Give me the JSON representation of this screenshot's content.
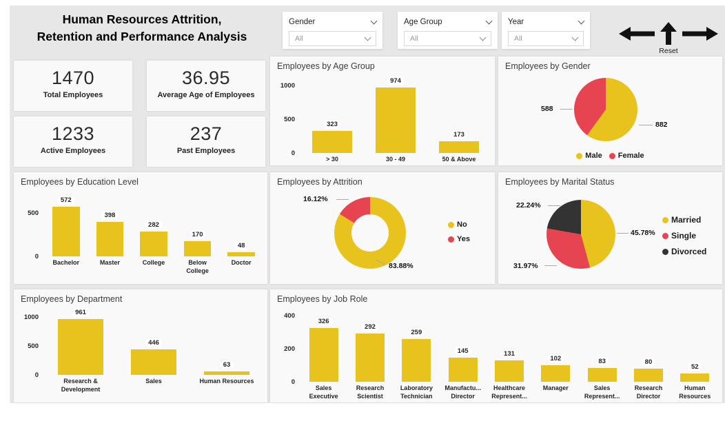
{
  "header": {
    "title_line1": "Human Resources Attrition,",
    "title_line2": "Retention and Performance Analysis",
    "slicers": [
      {
        "label": "Gender",
        "value": "All"
      },
      {
        "label": "Age Group",
        "value": "All"
      },
      {
        "label": "Year",
        "value": "All"
      }
    ],
    "reset_label": "Reset"
  },
  "kpis": [
    {
      "value": "1470",
      "label": "Total Employees"
    },
    {
      "value": "36.95",
      "label": "Average Age of Employees"
    },
    {
      "value": "1233",
      "label": "Active Employees"
    },
    {
      "value": "237",
      "label": "Past Employees"
    }
  ],
  "colors": {
    "bar_yellow": "#E9C31D",
    "accent_red": "#E64450",
    "accent_dark": "#333333",
    "page_background": "#E7E7E7",
    "card_background": "#F9F9F9"
  },
  "chart_data": [
    {
      "id": "age_group",
      "type": "bar",
      "title": "Employees by Age Group",
      "categories": [
        "> 30",
        "30 - 49",
        "50 & Above"
      ],
      "values": [
        323,
        974,
        173
      ],
      "ylim": [
        0,
        1000
      ],
      "yticks": [
        0,
        500,
        1000
      ],
      "bar_color": "#E9C31D",
      "grid": false
    },
    {
      "id": "gender",
      "type": "pie",
      "title": "Employees by Gender",
      "labels": [
        "Male",
        "Female"
      ],
      "values": [
        882,
        588
      ],
      "display_values": [
        "882",
        "588"
      ],
      "colors": [
        "#E9C31D",
        "#E64450"
      ],
      "legend_position": "bottom"
    },
    {
      "id": "education",
      "type": "bar",
      "title": "Employees by Education Level",
      "categories": [
        "Bachelor",
        "Master",
        "College",
        "Below College",
        "Doctor"
      ],
      "values": [
        572,
        398,
        282,
        170,
        48
      ],
      "ylim": [
        0,
        600
      ],
      "yticks": [
        0,
        500
      ],
      "bar_color": "#E9C31D",
      "grid": false
    },
    {
      "id": "attrition",
      "type": "donut",
      "title": "Employees by Attrition",
      "labels": [
        "No",
        "Yes"
      ],
      "values": [
        83.88,
        16.12
      ],
      "display_values": [
        "83.88%",
        "16.12%"
      ],
      "colors": [
        "#E9C31D",
        "#E64450"
      ],
      "legend_position": "right"
    },
    {
      "id": "marital",
      "type": "pie",
      "title": "Employees by Marital Status",
      "labels": [
        "Married",
        "Single",
        "Divorced"
      ],
      "values": [
        45.78,
        31.97,
        22.24
      ],
      "display_values": [
        "45.78%",
        "31.97%",
        "22.24%"
      ],
      "colors": [
        "#E9C31D",
        "#E64450",
        "#333333"
      ],
      "legend_position": "right"
    },
    {
      "id": "department",
      "type": "bar",
      "title": "Employees by Department",
      "categories": [
        "Research & Development",
        "Sales",
        "Human Resources"
      ],
      "values": [
        961,
        446,
        63
      ],
      "ylim": [
        0,
        1000
      ],
      "yticks": [
        0,
        500,
        1000
      ],
      "bar_color": "#E9C31D",
      "grid": false
    },
    {
      "id": "job_role",
      "type": "bar",
      "title": "Employees by Job Role",
      "categories": [
        "Sales Executive",
        "Research Scientist",
        "Laboratory Technician",
        "Manufactu... Director",
        "Healthcare Represent...",
        "Manager",
        "Sales Represent...",
        "Research Director",
        "Human Resources"
      ],
      "values": [
        326,
        292,
        259,
        145,
        131,
        102,
        83,
        80,
        52
      ],
      "ylim": [
        0,
        400
      ],
      "yticks": [
        0,
        200,
        400
      ],
      "bar_color": "#E9C31D",
      "grid": false
    }
  ]
}
